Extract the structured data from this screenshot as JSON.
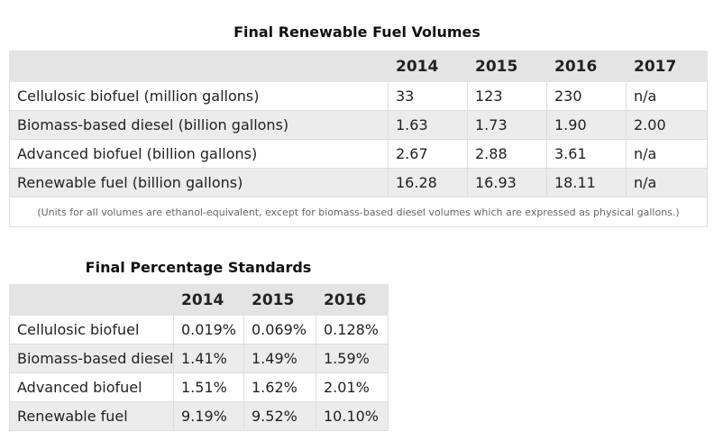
{
  "table1": {
    "title": "Final Renewable Fuel Volumes",
    "headers": [
      "",
      "2014",
      "2015",
      "2016",
      "2017"
    ],
    "rows": [
      [
        "Cellulosic biofuel (million gallons)",
        "33",
        "123",
        "230",
        "n/a"
      ],
      [
        "Biomass-based diesel (billion gallons)",
        "1.63",
        "1.73",
        "1.90",
        "2.00"
      ],
      [
        "Advanced biofuel (billion gallons)",
        "2.67",
        "2.88",
        "3.61",
        "n/a"
      ],
      [
        "Renewable fuel (billion gallons)",
        "16.28",
        "16.93",
        "18.11",
        "n/a"
      ]
    ],
    "note": "(Units for all volumes are ethanol-equivalent, except for biomass-based diesel volumes which are expressed as physical gallons.)"
  },
  "table2": {
    "title": "Final Percentage Standards",
    "headers": [
      "",
      "2014",
      "2015",
      "2016"
    ],
    "rows": [
      [
        "Cellulosic biofuel",
        "0.019%",
        "0.069%",
        "0.128%"
      ],
      [
        "Biomass-based diesel",
        "1.41%",
        "1.49%",
        "1.59%"
      ],
      [
        "Advanced biofuel",
        "1.51%",
        "1.62%",
        "2.01%"
      ],
      [
        "Renewable fuel",
        "9.19%",
        "9.52%",
        "10.10%"
      ]
    ]
  },
  "colors": {
    "header_bg": "#e4e4e4",
    "stripe_bg": "#ececec",
    "border": "#dddddd"
  }
}
